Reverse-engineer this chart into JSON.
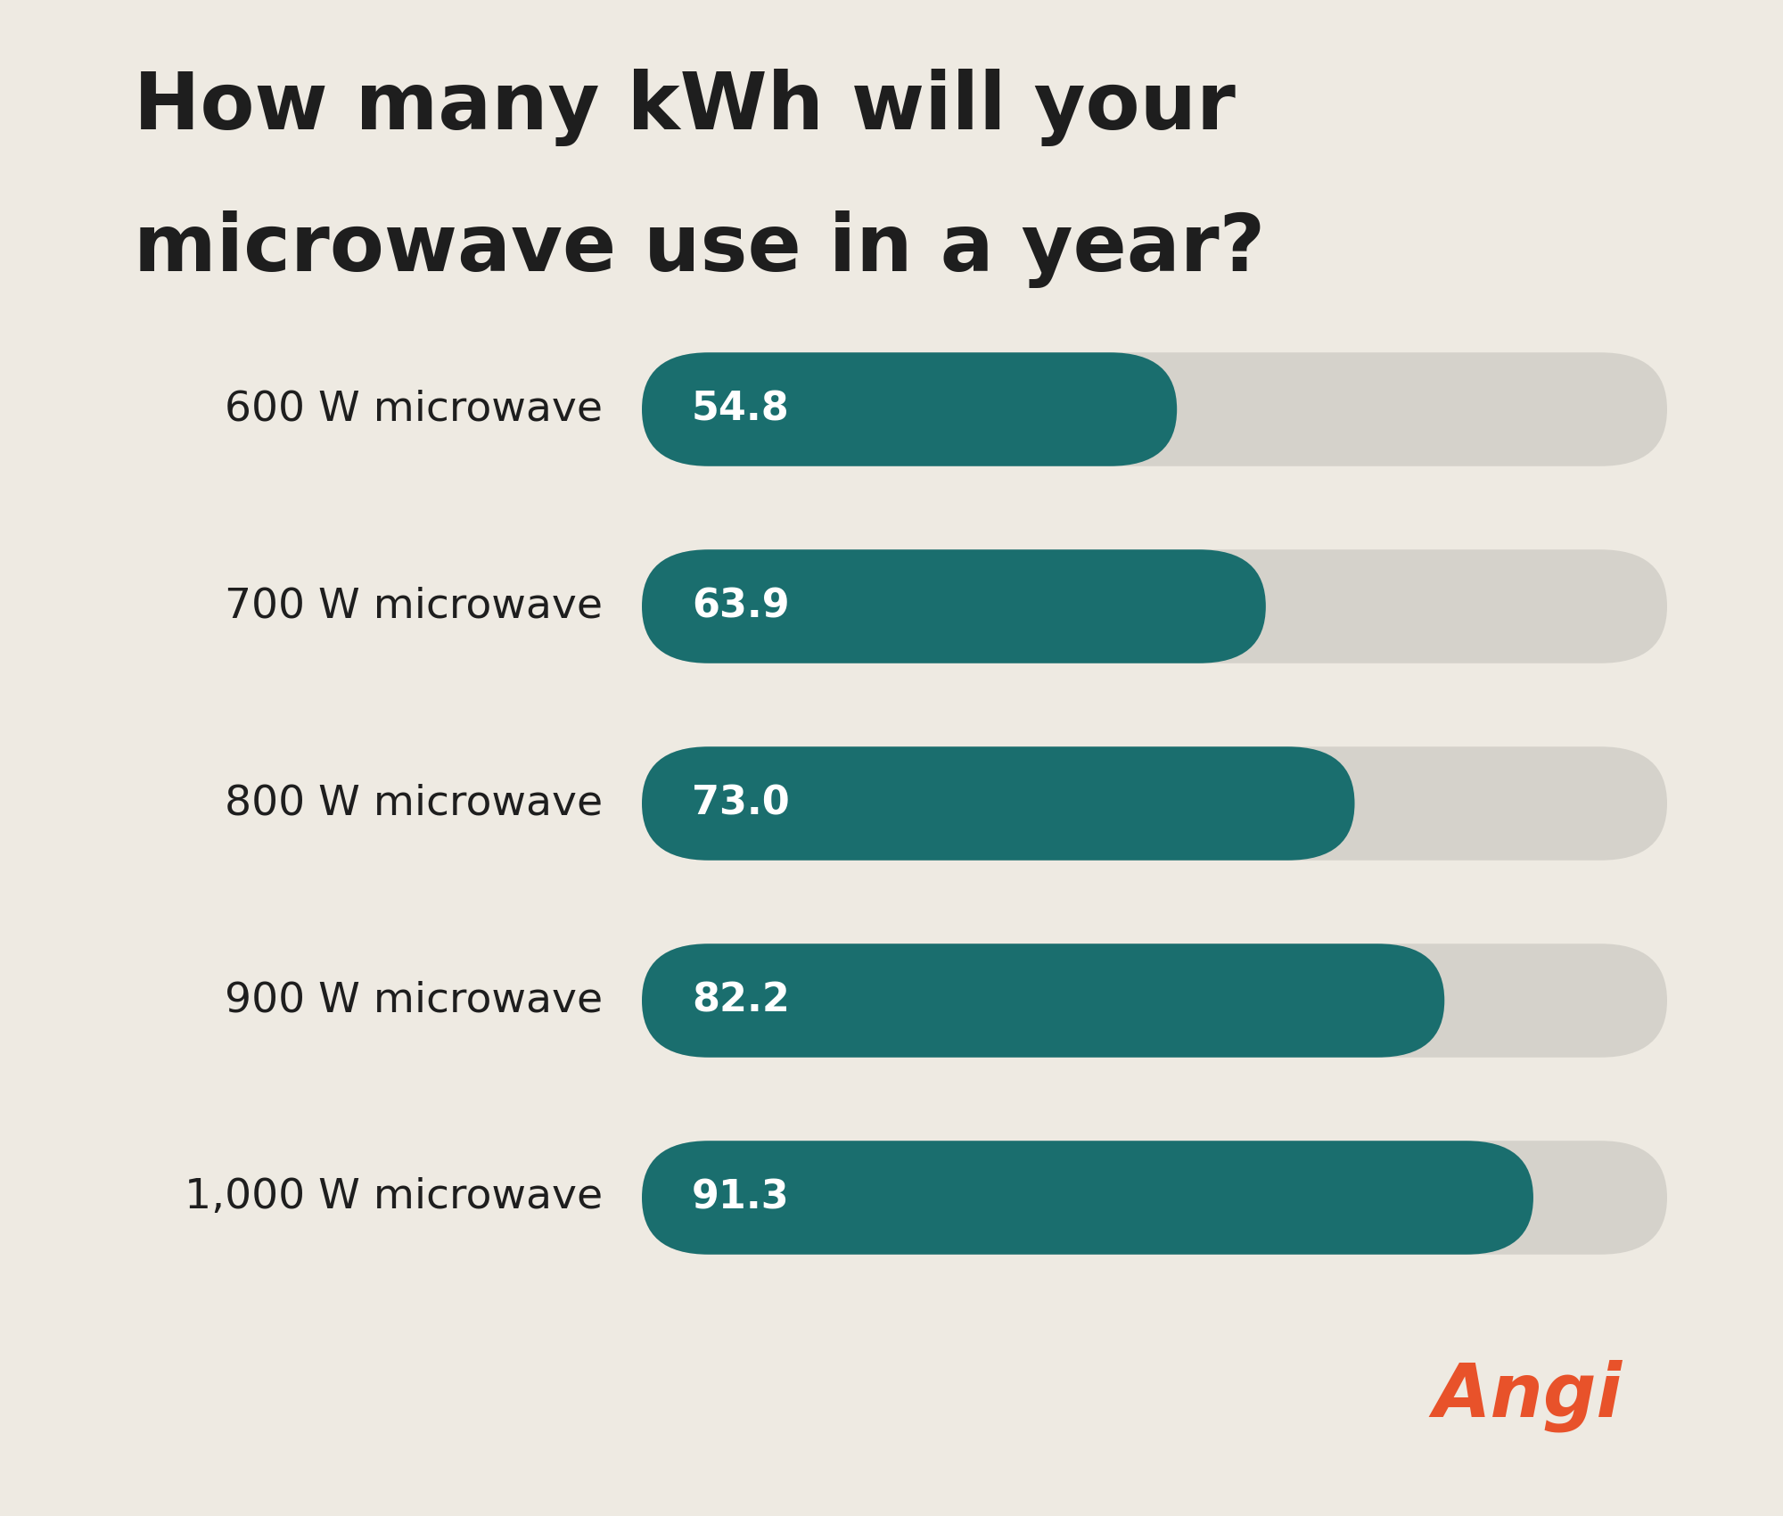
{
  "title_line1": "How many kWh will your",
  "title_line2": "microwave use in a year?",
  "background_color": "#eeeae2",
  "bar_color": "#1a6e6e",
  "track_color": "#d5d2cb",
  "text_color": "#1e1e1e",
  "label_text_color": "#ffffff",
  "categories": [
    "600 W microwave",
    "700 W microwave",
    "800 W microwave",
    "900 W microwave",
    "1,000 W microwave"
  ],
  "values": [
    54.8,
    63.9,
    73.0,
    82.2,
    91.3
  ],
  "max_value": 105,
  "angi_color": "#e8522a",
  "title_fontsize": 64,
  "value_fontsize": 32,
  "category_fontsize": 34,
  "angi_fontsize": 60
}
